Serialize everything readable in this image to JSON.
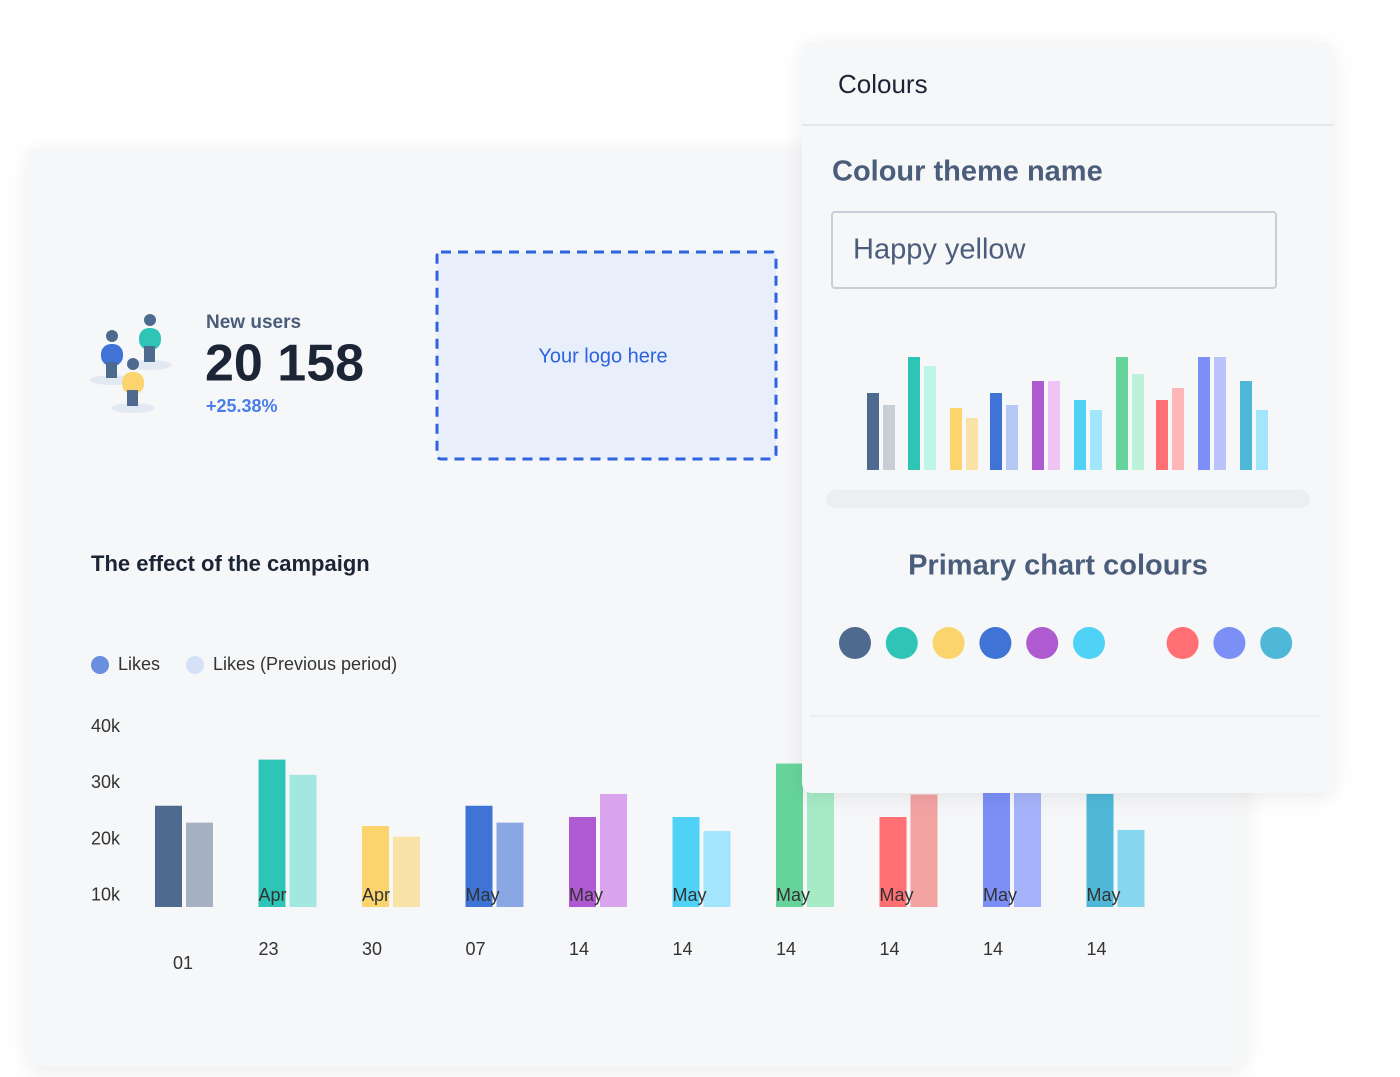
{
  "dashboard": {
    "widget": {
      "label": "New users",
      "value": "20 158",
      "change": "+25.38%"
    },
    "logo": {
      "text": "Your logo here"
    },
    "chart_data": {
      "type": "bar",
      "title": "The effect of the campaign",
      "categories": [
        "01",
        "Apr 23",
        "Apr 30",
        "May 07",
        "May 14",
        "May 14",
        "May 14",
        "May 14",
        "May 14",
        "May 14"
      ],
      "series": [
        {
          "name": "Likes",
          "color": "#6a8fdf",
          "colors": [
            "#4f6a8f",
            "#2ec4b6",
            "#fbd46d",
            "#3f74d6",
            "#b05ad1",
            "#50d2f7",
            "#66d49a",
            "#ff6f74",
            "#7b8ff7",
            "#4fb8d8"
          ],
          "values": [
            26000,
            34200,
            22400,
            26000,
            24000,
            24000,
            33500,
            24000,
            28300,
            28100
          ]
        },
        {
          "name": "Likes (Previous period)",
          "color": "#d5e1f7",
          "colors": [
            "#a5b1c1",
            "#a2e8e1",
            "#f9e2a6",
            "#89a8e3",
            "#daa3ee",
            "#a3e6fb",
            "#a6ebc5",
            "#f3a2a2",
            "#a6b3fa",
            "#86d6ef"
          ],
          "values": [
            23000,
            31500,
            20500,
            23000,
            28100,
            21500,
            29700,
            28000,
            28300,
            21700
          ]
        }
      ],
      "ylim": [
        8000,
        40000
      ],
      "yticks": [
        {
          "value": 10000,
          "label": "10k"
        },
        {
          "value": 20000,
          "label": "20k"
        },
        {
          "value": 30000,
          "label": "30k"
        },
        {
          "value": 40000,
          "label": "40k"
        }
      ]
    }
  },
  "panel": {
    "title": "Colours",
    "theme_label": "Colour theme name",
    "theme_value": "Happy yellow",
    "primary_label": "Primary chart colours",
    "primary_colors": [
      "#4f6a8f",
      "#2ec4b6",
      "#fbd46d",
      "#3f74d6",
      "#b05ad1",
      "#50d2f7",
      "#ff6f74",
      "#7b8ff7",
      "#4fb8d8"
    ]
  }
}
